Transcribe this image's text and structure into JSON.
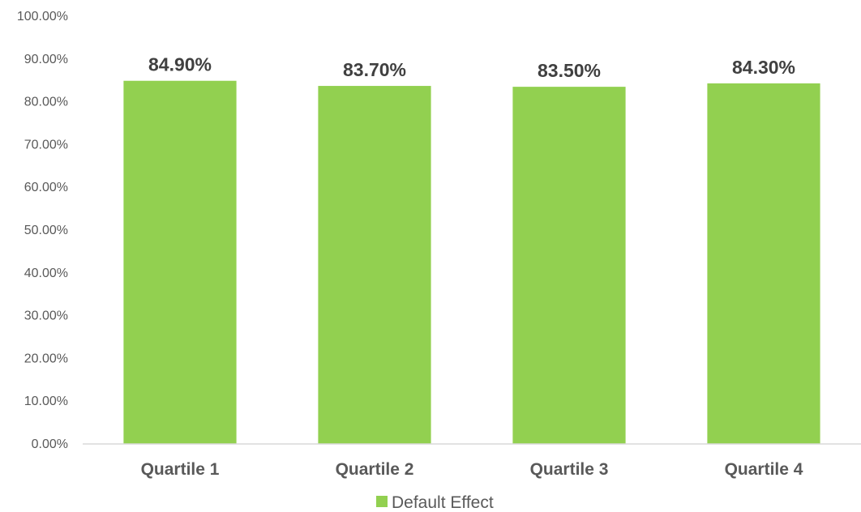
{
  "chart_data": {
    "type": "bar",
    "categories": [
      "Quartile 1",
      "Quartile 2",
      "Quartile 3",
      "Quartile 4"
    ],
    "series": [
      {
        "name": "Default Effect",
        "values": [
          84.9,
          83.7,
          83.5,
          84.3
        ],
        "labels": [
          "84.90%",
          "83.70%",
          "83.50%",
          "84.30%"
        ],
        "color": "#92d050"
      }
    ],
    "ylim": [
      0,
      100
    ],
    "y_ticks": [
      0,
      10,
      20,
      30,
      40,
      50,
      60,
      70,
      80,
      90,
      100
    ],
    "y_tick_labels": [
      "0.00%",
      "10.00%",
      "20.00%",
      "30.00%",
      "40.00%",
      "50.00%",
      "60.00%",
      "70.00%",
      "80.00%",
      "90.00%",
      "100.00%"
    ],
    "grid": false,
    "legend": "bottom",
    "axis_color": "#d9d9d9"
  }
}
